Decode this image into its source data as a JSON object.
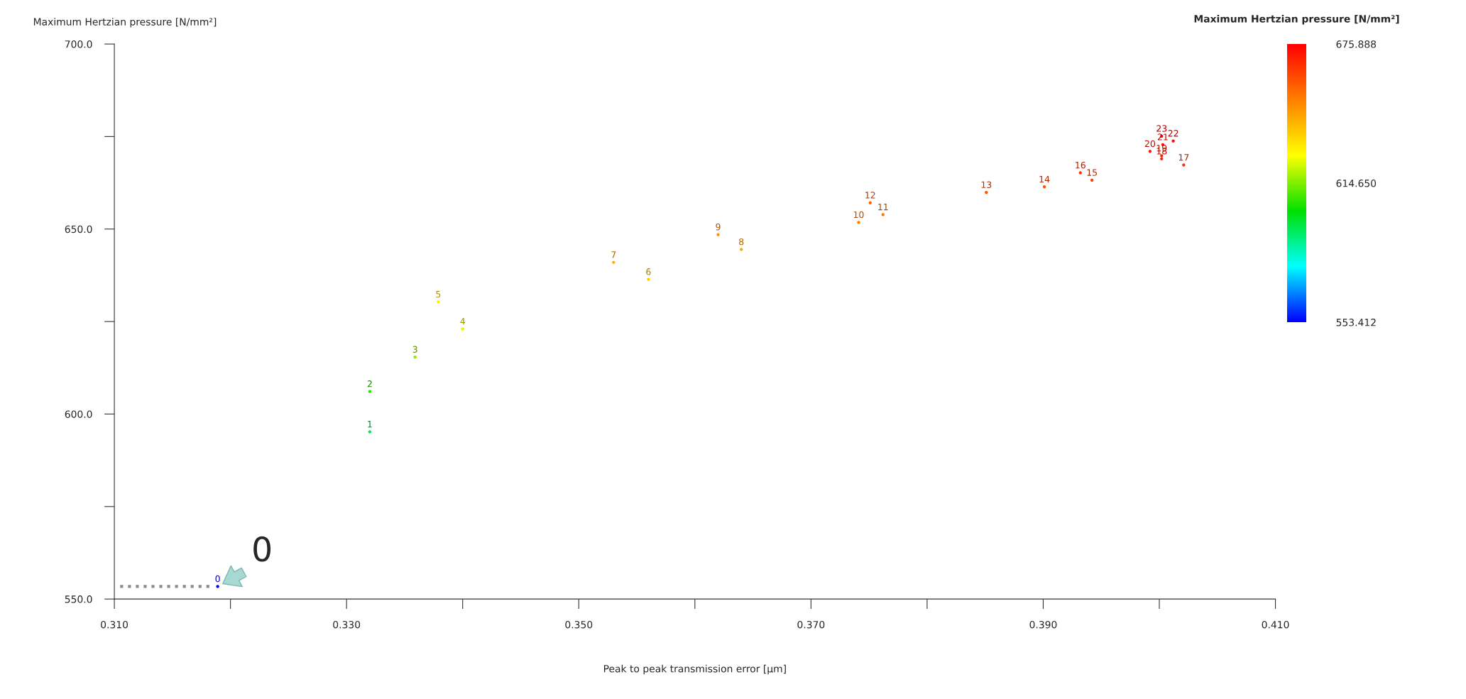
{
  "chart_data": {
    "type": "scatter",
    "xlabel": "Peak to peak transmission error [µm]",
    "ylabel": "Maximum Hertzian pressure [N/mm²]",
    "clabel": "Maximum Hertzian pressure [N/mm²]",
    "xlim": [
      0.31,
      0.41
    ],
    "xticks": [
      {
        "value": 0.31,
        "label": "0.310"
      },
      {
        "value": 0.32,
        "label": null
      },
      {
        "value": 0.33,
        "label": "0.330"
      },
      {
        "value": 0.34,
        "label": null
      },
      {
        "value": 0.35,
        "label": "0.350"
      },
      {
        "value": 0.36,
        "label": null
      },
      {
        "value": 0.37,
        "label": "0.370"
      },
      {
        "value": 0.38,
        "label": null
      },
      {
        "value": 0.39,
        "label": "0.390"
      },
      {
        "value": 0.4,
        "label": null
      },
      {
        "value": 0.41,
        "label": "0.410"
      }
    ],
    "ylim": [
      550,
      700
    ],
    "yticks": [
      {
        "value": 550,
        "label": "550.0"
      },
      {
        "value": 575,
        "label": null
      },
      {
        "value": 600,
        "label": "600.0"
      },
      {
        "value": 625,
        "label": null
      },
      {
        "value": 650,
        "label": "650.0"
      },
      {
        "value": 675,
        "label": null
      },
      {
        "value": 700,
        "label": "700.0"
      }
    ],
    "clim": [
      553.412,
      675.888
    ],
    "cticks": [
      {
        "value": 553.412,
        "label": "553.412"
      },
      {
        "value": 614.65,
        "label": "614.650"
      },
      {
        "value": 675.888,
        "label": "675.888"
      }
    ],
    "grid": false,
    "series": [
      {
        "marker": "circle",
        "x": [
          0.3189,
          0.332,
          0.332,
          0.3359,
          0.34,
          0.3379,
          0.356,
          0.353,
          0.364,
          0.362,
          0.3741,
          0.3762,
          0.3751,
          0.3851,
          0.3901,
          0.3942,
          0.3932,
          0.4021,
          0.4002,
          0.4002,
          0.3992,
          0.4003,
          0.4012,
          0.4002
        ],
        "values": [
          553.4,
          595.2,
          606.1,
          615.4,
          623.0,
          630.3,
          636.4,
          641.0,
          644.5,
          648.5,
          651.8,
          653.9,
          657.1,
          659.9,
          661.4,
          663.2,
          665.2,
          667.3,
          669.0,
          669.8,
          671.0,
          672.8,
          673.8,
          675.1
        ],
        "colors": [
          "#0000ff",
          "#00e94b",
          "#26e500",
          "#87f000",
          "#d6fa00",
          "#ffed00",
          "#ffcd00",
          "#ffb600",
          "#ffa400",
          "#ff8f00",
          "#ff7e00",
          "#ff7300",
          "#ff6200",
          "#ff5300",
          "#ff4b00",
          "#ff4200",
          "#ff3800",
          "#ff2d00",
          "#ff2400",
          "#ff2000",
          "#ff1a00",
          "#ff1000",
          "#ff0b00",
          "#ff0400"
        ]
      },
      {
        "type": "line",
        "color": "#8c8c8c",
        "line_style": "dotted",
        "marker": "none",
        "x": [
          0.3105,
          0.3185
        ],
        "values": [
          553.4,
          553.4
        ]
      }
    ],
    "annotations": [
      {
        "text": "0",
        "x": 0.3189,
        "y": 553.4
      },
      {
        "text": "0",
        "x": 0.3189,
        "y": 553.4
      },
      {
        "text": "1",
        "x": 0.332,
        "y": 595.2
      },
      {
        "text": "2",
        "x": 0.332,
        "y": 606.1
      },
      {
        "text": "3",
        "x": 0.3359,
        "y": 615.4
      },
      {
        "text": "4",
        "x": 0.34,
        "y": 623.0
      },
      {
        "text": "5",
        "x": 0.3379,
        "y": 630.3
      },
      {
        "text": "6",
        "x": 0.356,
        "y": 636.4
      },
      {
        "text": "7",
        "x": 0.353,
        "y": 641.0
      },
      {
        "text": "8",
        "x": 0.364,
        "y": 644.5
      },
      {
        "text": "9",
        "x": 0.362,
        "y": 648.5
      },
      {
        "text": "10",
        "x": 0.3741,
        "y": 651.8
      },
      {
        "text": "11",
        "x": 0.3762,
        "y": 653.9
      },
      {
        "text": "12",
        "x": 0.3751,
        "y": 657.1
      },
      {
        "text": "13",
        "x": 0.3851,
        "y": 659.9
      },
      {
        "text": "14",
        "x": 0.3901,
        "y": 661.4
      },
      {
        "text": "15",
        "x": 0.3942,
        "y": 663.2
      },
      {
        "text": "16",
        "x": 0.3932,
        "y": 665.2
      },
      {
        "text": "17",
        "x": 0.4021,
        "y": 667.3
      },
      {
        "text": "18",
        "x": 0.4002,
        "y": 669.0
      },
      {
        "text": "19",
        "x": 0.4002,
        "y": 669.8
      },
      {
        "text": "20",
        "x": 0.3992,
        "y": 671.0
      },
      {
        "text": "21",
        "x": 0.4003,
        "y": 672.8
      },
      {
        "text": "22",
        "x": 0.4012,
        "y": 673.8
      },
      {
        "text": "23",
        "x": 0.4002,
        "y": 675.1
      }
    ]
  }
}
